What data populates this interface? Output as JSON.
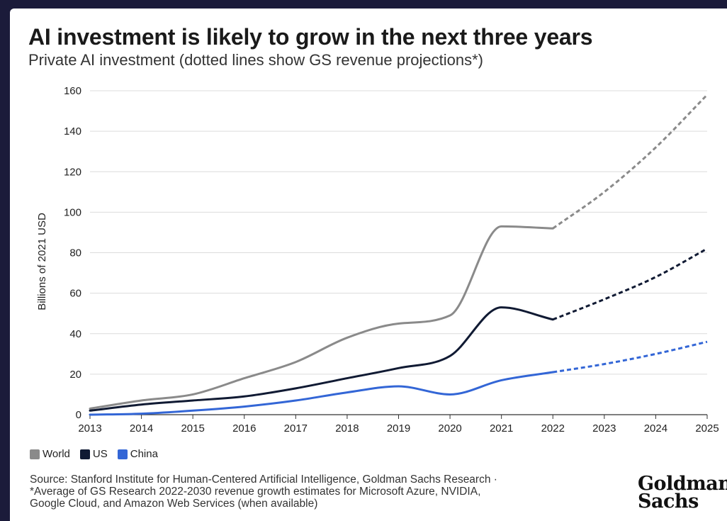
{
  "chart_data": {
    "type": "line",
    "title": "AI investment is likely to grow in the next three years",
    "subtitle": "Private AI investment (dotted lines show GS revenue projections*)",
    "ylabel": "Billions of 2021 USD",
    "xlabel": "",
    "ylim": [
      0,
      160
    ],
    "yticks": [
      0,
      20,
      40,
      60,
      80,
      100,
      120,
      140,
      160
    ],
    "x": [
      2013,
      2014,
      2015,
      2016,
      2017,
      2018,
      2019,
      2020,
      2021,
      2022,
      2023,
      2024,
      2025
    ],
    "xtick_labels": [
      "2013",
      "2014",
      "2015",
      "2016",
      "2017",
      "2018",
      "2019",
      "2020",
      "2021",
      "2022",
      "2023",
      "2024",
      "2025"
    ],
    "projection_start": 2022,
    "grid": "horizontal",
    "legend_placement": "bottom-left",
    "series": [
      {
        "name": "World",
        "color": "#8a8a8a",
        "values": [
          3,
          7,
          10,
          18,
          26,
          38,
          45,
          49,
          93,
          92,
          110,
          132,
          158
        ]
      },
      {
        "name": "US",
        "color": "#101a33",
        "values": [
          2,
          5,
          7,
          9,
          13,
          18,
          23,
          29,
          53,
          47,
          57,
          68,
          82
        ]
      },
      {
        "name": "China",
        "color": "#3366d6",
        "values": [
          0,
          0.5,
          2,
          4,
          7,
          11,
          14,
          10,
          17,
          21,
          25,
          30,
          36
        ]
      }
    ]
  },
  "footer": {
    "source_line1": "Source: Stanford Institute for Human-Centered Artificial Intelligence, Goldman Sachs Research ·",
    "source_line2": "*Average of GS Research 2022-2030 revenue growth estimates for Microsoft Azure, NVIDIA,",
    "source_line3": "Google Cloud, and Amazon Web Services (when available)",
    "logo_line1": "Goldman",
    "logo_line2": "Sachs"
  }
}
